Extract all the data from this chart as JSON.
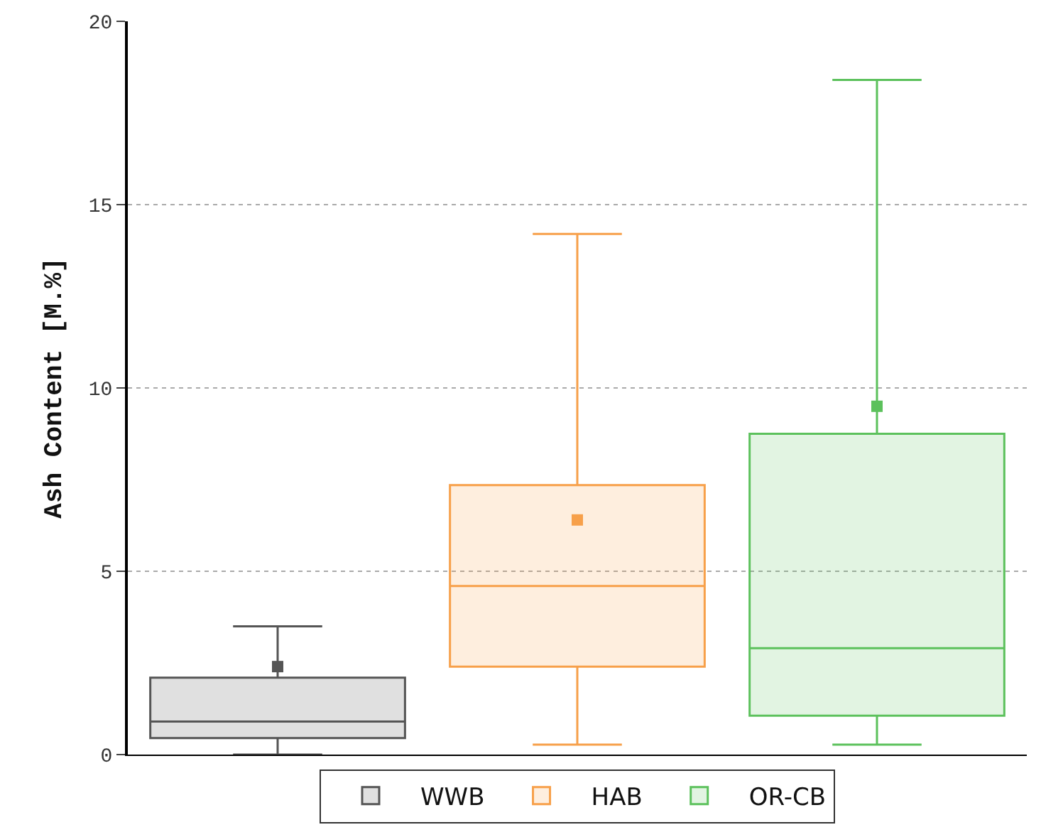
{
  "chart_data": {
    "type": "box",
    "ylabel": "Ash Content [M.%]",
    "categories": [
      null,
      null,
      null
    ],
    "ylim": [
      0,
      20
    ],
    "yticks": [
      0,
      5,
      10,
      15,
      20
    ],
    "grid": "y",
    "legend": "bottom",
    "marker": "square",
    "tick_labels": "y",
    "series": [
      {
        "name": "WWB",
        "color": "#555555",
        "boxes": [
          {
            "low": 0,
            "q1": 0.45,
            "median": 0.9,
            "q3": 2.1,
            "high": 3.5,
            "mean": 2.4
          },
          null,
          null
        ]
      },
      {
        "name": "HAB",
        "color": "#f7a04a",
        "boxes": [
          null,
          {
            "low": 0.27,
            "q1": 2.4,
            "median": 4.6,
            "q3": 7.35,
            "high": 14.2,
            "mean": 6.4
          },
          null
        ]
      },
      {
        "name": "OR-CB",
        "color": "#5cc15c",
        "boxes": [
          null,
          null,
          {
            "low": 0.27,
            "q1": 1.06,
            "median": 2.9,
            "q3": 8.75,
            "high": 18.4,
            "mean": 9.5
          }
        ]
      }
    ]
  }
}
